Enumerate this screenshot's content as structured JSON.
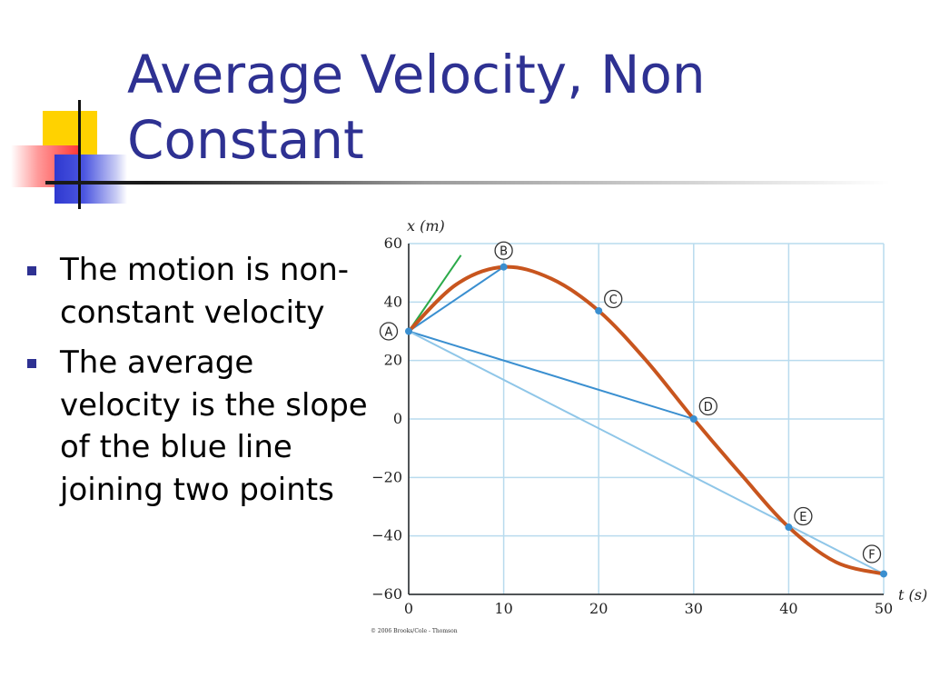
{
  "slide": {
    "title": "Average Velocity, Non Constant",
    "bullets": [
      "The motion is non-constant velocity",
      "The average velocity is the slope of the blue line joining two points"
    ]
  },
  "colors": {
    "title": "#2E3192",
    "bullet": "#2E3192",
    "curve": "#C8551E",
    "grid": "#B9DBEE",
    "blue_line": "#3A8FD0",
    "light_blue_line": "#8FC6E8",
    "tangent": "#2BAA4A"
  },
  "chart_data": {
    "type": "line",
    "xlabel": "t (s)",
    "ylabel": "x (m)",
    "xlim": [
      0,
      50
    ],
    "ylim": [
      -60,
      60
    ],
    "xticks": [
      0,
      10,
      20,
      30,
      40,
      50
    ],
    "yticks": [
      -60,
      -40,
      -20,
      0,
      20,
      40,
      60
    ],
    "grid": true,
    "curve": [
      {
        "t": 0,
        "x": 30
      },
      {
        "t": 5,
        "x": 46
      },
      {
        "t": 10,
        "x": 52
      },
      {
        "t": 15,
        "x": 48
      },
      {
        "t": 20,
        "x": 37
      },
      {
        "t": 25,
        "x": 20
      },
      {
        "t": 30,
        "x": 0
      },
      {
        "t": 35,
        "x": -19
      },
      {
        "t": 40,
        "x": -37
      },
      {
        "t": 45,
        "x": -49
      },
      {
        "t": 50,
        "x": -53
      }
    ],
    "points": [
      {
        "label": "A",
        "t": 0,
        "x": 30
      },
      {
        "label": "B",
        "t": 10,
        "x": 52
      },
      {
        "label": "C",
        "t": 20,
        "x": 37
      },
      {
        "label": "D",
        "t": 30,
        "x": 0
      },
      {
        "label": "E",
        "t": 40,
        "x": -37
      },
      {
        "label": "F",
        "t": 50,
        "x": -53
      }
    ],
    "secant_lines": [
      {
        "from": "A",
        "to": "B",
        "style": "blue"
      },
      {
        "from": "A",
        "to": "D",
        "style": "blue"
      },
      {
        "from": "A",
        "to": "F",
        "style": "light-blue"
      }
    ],
    "tangent_line": {
      "at": "A",
      "t_end": 5.5,
      "x_end": 56
    },
    "copyright": "© 2006 Brooks/Cole - Thomson"
  }
}
